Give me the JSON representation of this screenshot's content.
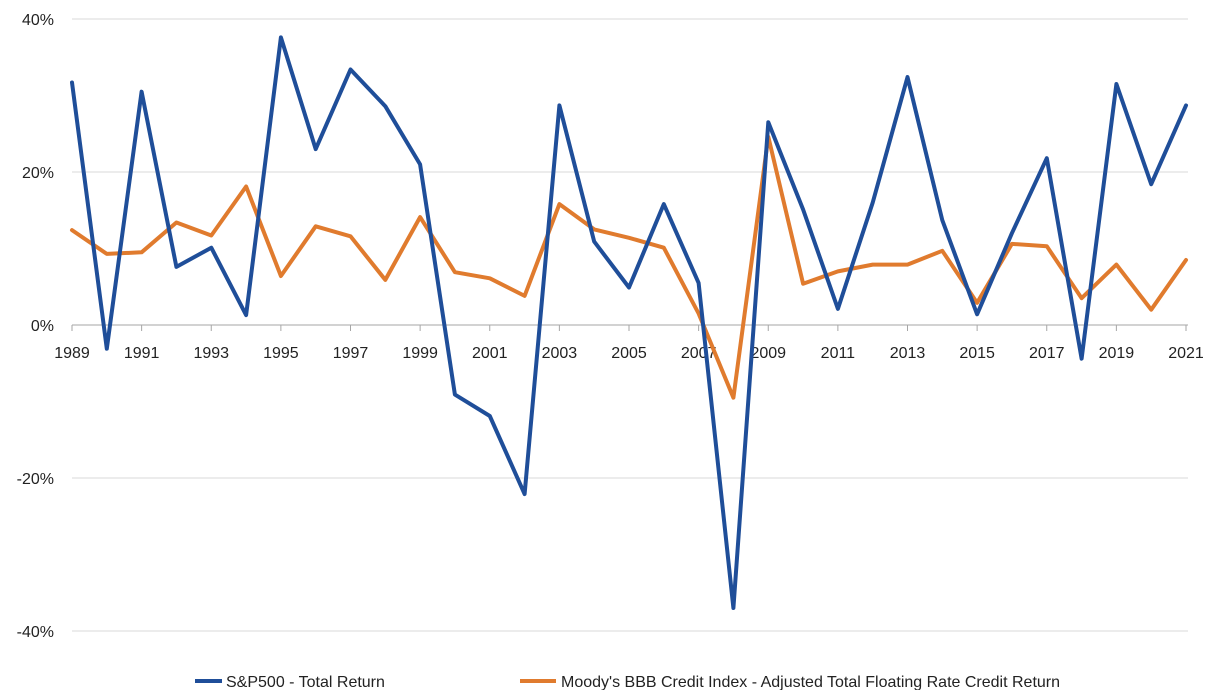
{
  "chart_data": {
    "type": "line",
    "title": "",
    "xlabel": "",
    "ylabel": "",
    "x": [
      1989,
      1990,
      1991,
      1992,
      1993,
      1994,
      1995,
      1996,
      1997,
      1998,
      1999,
      2000,
      2001,
      2002,
      2003,
      2004,
      2005,
      2006,
      2007,
      2008,
      2009,
      2010,
      2011,
      2012,
      2013,
      2014,
      2015,
      2016,
      2017,
      2018,
      2019,
      2020,
      2021
    ],
    "x_tick_labels": [
      "1989",
      "1991",
      "1993",
      "1995",
      "1997",
      "1999",
      "2001",
      "2003",
      "2005",
      "2007",
      "2009",
      "2011",
      "2013",
      "2015",
      "2017",
      "2019",
      "2021"
    ],
    "ylim": [
      -40,
      40
    ],
    "y_ticks": [
      -40,
      -20,
      0,
      20,
      40
    ],
    "y_tick_labels": [
      "-40%",
      "-20%",
      "0%",
      "20%",
      "40%"
    ],
    "grid": true,
    "legend_position": "bottom",
    "series": [
      {
        "name": "S&P500 - Total Return",
        "color": "#1f4e99",
        "values": [
          31.7,
          -3.1,
          30.5,
          7.6,
          10.1,
          1.3,
          37.6,
          23.0,
          33.4,
          28.6,
          21.0,
          -9.1,
          -11.9,
          -22.1,
          28.7,
          10.9,
          4.9,
          15.8,
          5.5,
          -37.0,
          26.5,
          15.1,
          2.1,
          16.0,
          32.4,
          13.7,
          1.4,
          12.0,
          21.8,
          -4.4,
          31.5,
          18.4,
          28.7
        ]
      },
      {
        "name": "Moody's BBB Credit Index - Adjusted Total Floating Rate Credit Return",
        "color": "#e07b2e",
        "values": [
          12.4,
          9.3,
          9.5,
          13.4,
          11.7,
          18.1,
          6.4,
          12.9,
          11.6,
          5.9,
          14.1,
          6.9,
          6.1,
          3.8,
          15.8,
          12.5,
          11.4,
          10.1,
          1.5,
          -9.5,
          24.6,
          5.4,
          7.0,
          7.9,
          7.9,
          9.7,
          2.9,
          10.6,
          10.3,
          3.5,
          7.9,
          2.0,
          8.5
        ]
      }
    ]
  }
}
